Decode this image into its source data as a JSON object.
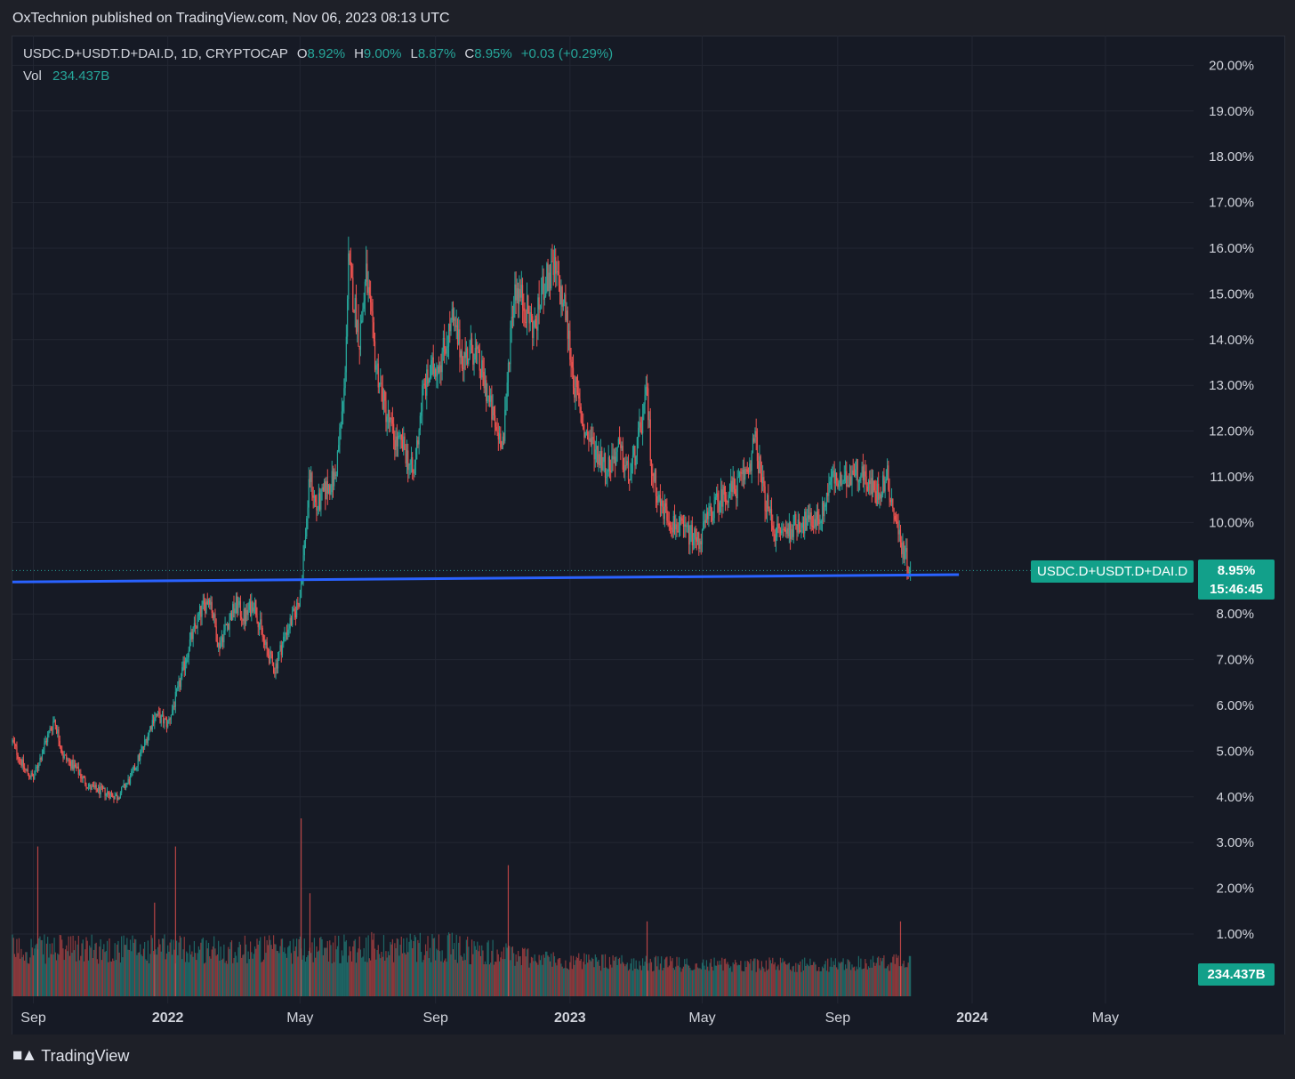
{
  "header": {
    "published_by": "OxTechnion published on TradingView.com, Nov 06, 2023 08:13 UTC"
  },
  "legend": {
    "symbol": "USDC.D+USDT.D+DAI.D, 1D, CRYPTOCAP",
    "open_label": "O",
    "open": "8.92%",
    "high_label": "H",
    "high": "9.00%",
    "low_label": "L",
    "low": "8.87%",
    "close_label": "C",
    "close": "8.95%",
    "change": "+0.03 (+0.29%)",
    "vol_label": "Vol",
    "vol": "234.437B"
  },
  "badges": {
    "series_name": "USDC.D+USDT.D+DAI.D",
    "last_price": "8.95%",
    "countdown": "15:46:45",
    "volume": "234.437B"
  },
  "footer": {
    "brand": "TradingView"
  },
  "colors": {
    "up": "#26a69a",
    "down": "#ef5350",
    "background": "#161a25",
    "grid": "#232733",
    "support_line": "#2962ff",
    "badge": "#12a08a"
  },
  "chart_data": {
    "type": "candlestick",
    "title": "USDC.D+USDT.D+DAI.D, 1D, CRYPTOCAP",
    "ylabel": "",
    "ylim": [
      0.3,
      20.3
    ],
    "y_unit": "%",
    "y_ticks": [
      "1.00%",
      "2.00%",
      "3.00%",
      "4.00%",
      "5.00%",
      "6.00%",
      "7.00%",
      "8.00%",
      "10.00%",
      "11.00%",
      "12.00%",
      "13.00%",
      "14.00%",
      "15.00%",
      "16.00%",
      "17.00%",
      "18.00%",
      "19.00%",
      "20.00%"
    ],
    "x_ticks": [
      "Sep",
      "2022",
      "May",
      "Sep",
      "2023",
      "May",
      "Sep",
      "2024",
      "May"
    ],
    "x_tick_dates": [
      "2021-09-01",
      "2022-01-01",
      "2022-05-01",
      "2022-09-01",
      "2023-01-01",
      "2023-05-01",
      "2023-09-01",
      "2024-01-01",
      "2024-05-01"
    ],
    "x_range": [
      "2021-08-13",
      "2024-07-20"
    ],
    "grid": true,
    "last_close": 8.95,
    "price_path": [
      [
        "2021-08-13",
        5.2
      ],
      [
        "2021-08-24",
        4.6
      ],
      [
        "2021-09-01",
        4.4
      ],
      [
        "2021-09-12",
        5.2
      ],
      [
        "2021-09-20",
        5.7
      ],
      [
        "2021-09-28",
        4.9
      ],
      [
        "2021-10-10",
        4.6
      ],
      [
        "2021-10-22",
        4.2
      ],
      [
        "2021-11-05",
        4.1
      ],
      [
        "2021-11-16",
        4.0
      ],
      [
        "2021-11-28",
        4.4
      ],
      [
        "2021-12-10",
        5.1
      ],
      [
        "2021-12-20",
        5.8
      ],
      [
        "2022-01-01",
        5.6
      ],
      [
        "2022-01-10",
        6.3
      ],
      [
        "2022-01-20",
        7.3
      ],
      [
        "2022-01-30",
        8.0
      ],
      [
        "2022-02-08",
        8.4
      ],
      [
        "2022-02-16",
        7.3
      ],
      [
        "2022-02-24",
        7.8
      ],
      [
        "2022-03-04",
        8.2
      ],
      [
        "2022-03-12",
        7.9
      ],
      [
        "2022-03-20",
        8.3
      ],
      [
        "2022-03-30",
        7.3
      ],
      [
        "2022-04-08",
        6.8
      ],
      [
        "2022-04-18",
        7.6
      ],
      [
        "2022-04-26",
        8.0
      ],
      [
        "2022-05-01",
        8.4
      ],
      [
        "2022-05-06",
        9.8
      ],
      [
        "2022-05-10",
        11.0
      ],
      [
        "2022-05-16",
        10.3
      ],
      [
        "2022-05-24",
        10.7
      ],
      [
        "2022-06-02",
        11.0
      ],
      [
        "2022-06-10",
        12.8
      ],
      [
        "2022-06-14",
        15.6
      ],
      [
        "2022-06-18",
        15.0
      ],
      [
        "2022-06-24",
        14.0
      ],
      [
        "2022-06-30",
        15.4
      ],
      [
        "2022-07-08",
        13.6
      ],
      [
        "2022-07-16",
        12.6
      ],
      [
        "2022-07-26",
        11.8
      ],
      [
        "2022-08-04",
        11.6
      ],
      [
        "2022-08-12",
        11.0
      ],
      [
        "2022-08-20",
        12.8
      ],
      [
        "2022-08-28",
        13.3
      ],
      [
        "2022-09-06",
        13.6
      ],
      [
        "2022-09-16",
        14.4
      ],
      [
        "2022-09-26",
        13.6
      ],
      [
        "2022-10-06",
        13.8
      ],
      [
        "2022-10-16",
        13.0
      ],
      [
        "2022-10-26",
        12.0
      ],
      [
        "2022-11-02",
        11.8
      ],
      [
        "2022-11-08",
        14.2
      ],
      [
        "2022-11-12",
        15.2
      ],
      [
        "2022-11-20",
        14.8
      ],
      [
        "2022-11-30",
        14.2
      ],
      [
        "2022-12-08",
        15.2
      ],
      [
        "2022-12-18",
        15.5
      ],
      [
        "2022-12-28",
        14.6
      ],
      [
        "2023-01-05",
        13.0
      ],
      [
        "2023-01-14",
        12.0
      ],
      [
        "2023-01-24",
        11.6
      ],
      [
        "2023-02-04",
        11.2
      ],
      [
        "2023-02-14",
        11.6
      ],
      [
        "2023-02-24",
        11.0
      ],
      [
        "2023-03-04",
        11.8
      ],
      [
        "2023-03-12",
        12.8
      ],
      [
        "2023-03-16",
        11.2
      ],
      [
        "2023-03-24",
        10.4
      ],
      [
        "2023-04-04",
        10.0
      ],
      [
        "2023-04-16",
        9.8
      ],
      [
        "2023-04-28",
        9.6
      ],
      [
        "2023-05-08",
        10.2
      ],
      [
        "2023-05-20",
        10.6
      ],
      [
        "2023-06-02",
        10.8
      ],
      [
        "2023-06-12",
        11.2
      ],
      [
        "2023-06-18",
        11.8
      ],
      [
        "2023-06-26",
        10.6
      ],
      [
        "2023-07-06",
        9.8
      ],
      [
        "2023-07-16",
        9.8
      ],
      [
        "2023-07-26",
        10.0
      ],
      [
        "2023-08-08",
        10.0
      ],
      [
        "2023-08-18",
        10.2
      ],
      [
        "2023-08-26",
        11.0
      ],
      [
        "2023-09-06",
        10.8
      ],
      [
        "2023-09-16",
        11.2
      ],
      [
        "2023-09-26",
        11.0
      ],
      [
        "2023-10-06",
        10.6
      ],
      [
        "2023-10-16",
        11.0
      ],
      [
        "2023-10-22",
        10.2
      ],
      [
        "2023-10-28",
        9.6
      ],
      [
        "2023-11-06",
        8.95
      ]
    ],
    "volume_ylim": [
      0,
      1.9
    ],
    "volume_path": [
      [
        "2021-08-13",
        1.0
      ],
      [
        "2021-12-31",
        1.0
      ],
      [
        "2022-05-01",
        1.0
      ],
      [
        "2022-09-01",
        1.1
      ],
      [
        "2023-01-01",
        0.6
      ],
      [
        "2023-05-01",
        0.5
      ],
      [
        "2023-09-01",
        0.5
      ],
      [
        "2023-11-06",
        0.6
      ]
    ],
    "volume_spikes": [
      [
        "2021-09-05",
        1.6
      ],
      [
        "2021-12-20",
        1.0
      ],
      [
        "2022-01-08",
        1.6
      ],
      [
        "2022-05-02",
        1.9
      ],
      [
        "2022-05-10",
        1.1
      ],
      [
        "2022-11-06",
        1.4
      ],
      [
        "2023-03-12",
        0.8
      ],
      [
        "2023-10-28",
        0.8
      ]
    ],
    "support_line": {
      "from": [
        "2021-08-13",
        8.7
      ],
      "to": [
        "2023-12-20",
        8.86
      ]
    }
  }
}
